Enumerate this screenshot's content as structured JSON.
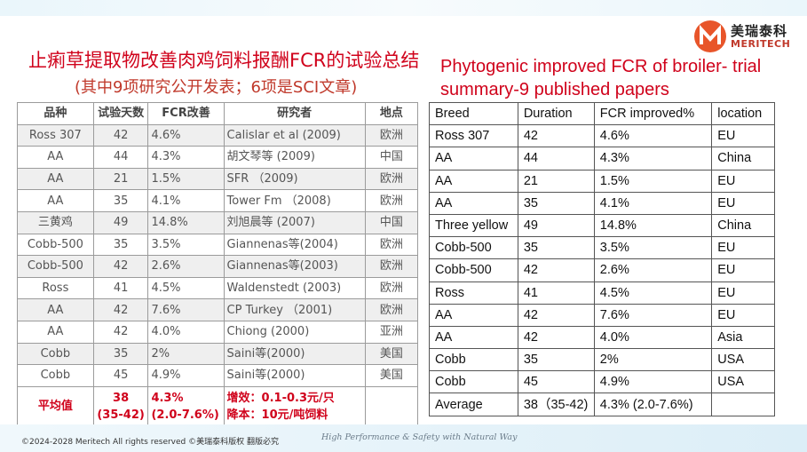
{
  "brand": {
    "name_cn": "美瑞泰科",
    "name_en": "MERITECH",
    "colors": {
      "accent": "#d0021b",
      "logo": "#e8552a"
    }
  },
  "title_cn": "止痢草提取物改善肉鸡饲料报酬FCR的试验总结",
  "subtitle_cn": "(其中9项研究公开发表；6项是SCI文章)",
  "title_en": "Phytogenic improved FCR of broiler- trial summary-9 published papers",
  "table_cn": {
    "headers": [
      "品种",
      "试验天数",
      "FCR改善",
      "研究者",
      "地点"
    ],
    "rows": [
      [
        "Ross 307",
        "42",
        "4.6%",
        "Calislar et al (2009)",
        "欧洲"
      ],
      [
        "AA",
        "44",
        "4.3%",
        "胡文琴等 (2009)",
        "中国"
      ],
      [
        "AA",
        "21",
        "1.5%",
        "SFR （2009)",
        "欧洲"
      ],
      [
        "AA",
        "35",
        "4.1%",
        "Tower Fm （2008)",
        "欧洲"
      ],
      [
        "三黄鸡",
        "49",
        "14.8%",
        "刘旭晨等 (2007)",
        "中国"
      ],
      [
        "Cobb-500",
        "35",
        "3.5%",
        "Giannenas等(2004)",
        "欧洲"
      ],
      [
        "Cobb-500",
        "42",
        "2.6%",
        "Giannenas等(2003)",
        "欧洲"
      ],
      [
        "Ross",
        "41",
        "4.5%",
        "Waldenstedt (2003)",
        "欧洲"
      ],
      [
        "AA",
        "42",
        "7.6%",
        "CP Turkey （2001)",
        "欧洲"
      ],
      [
        "AA",
        "42",
        "4.0%",
        "Chiong (2000)",
        "亚洲"
      ],
      [
        "Cobb",
        "35",
        "2%",
        "Saini等(2000)",
        "美国"
      ],
      [
        "Cobb",
        "45",
        "4.9%",
        "Saini等(2000)",
        "美国"
      ]
    ],
    "average": {
      "label": "平均值",
      "days_1": "38",
      "days_2": "(35-42)",
      "fcr_1": "4.3%",
      "fcr_2": "(2.0-7.6%)",
      "note_1": "增效：0.1-0.3元/只",
      "note_2": "降本：10元/吨饲料"
    }
  },
  "table_en": {
    "headers": [
      "Breed",
      "Duration",
      "FCR improved%",
      "location"
    ],
    "rows": [
      [
        "Ross 307",
        "42",
        "4.6%",
        "EU"
      ],
      [
        "AA",
        "44",
        "4.3%",
        "China"
      ],
      [
        "AA",
        "21",
        "1.5%",
        "EU"
      ],
      [
        "AA",
        "35",
        "4.1%",
        "EU"
      ],
      [
        "Three yellow",
        "49",
        "14.8%",
        "China"
      ],
      [
        "Cobb-500",
        "35",
        "3.5%",
        "EU"
      ],
      [
        "Cobb-500",
        "42",
        "2.6%",
        "EU"
      ],
      [
        "Ross",
        "41",
        "4.5%",
        "EU"
      ],
      [
        "AA",
        "42",
        "7.6%",
        "EU"
      ],
      [
        "AA",
        "42",
        "4.0%",
        "Asia"
      ],
      [
        "Cobb",
        "35",
        "2%",
        "USA"
      ],
      [
        "Cobb",
        "45",
        "4.9%",
        "USA"
      ],
      [
        "Average",
        "38（35-42)",
        "4.3% (2.0-7.6%)",
        ""
      ]
    ]
  },
  "footer": {
    "copyright": "©2024-2028 Meritech All rights reserved ©美瑞泰科版权 翻版必究",
    "slogan": "High Performance & Safety with Natural Way"
  }
}
